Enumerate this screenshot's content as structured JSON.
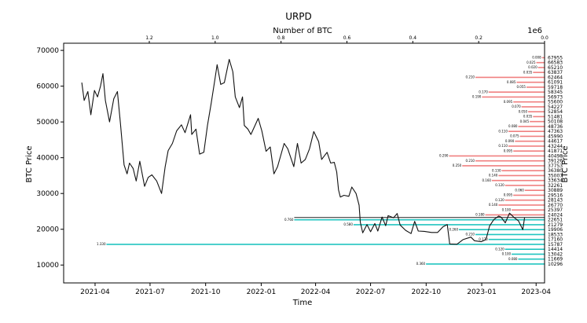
{
  "chart_data": {
    "type": "bar",
    "title": "URPD",
    "xlabel": "Time",
    "ylabel": "BTC Price",
    "ylabel_right": "BTC Price",
    "xlabel_top": "Number of BTC",
    "top_axis_multiplier": "1e6",
    "ylim": [
      5000,
      72000
    ],
    "yticks": [
      10000,
      20000,
      30000,
      40000,
      50000,
      60000,
      70000
    ],
    "xlim": [
      "2021-02-08",
      "2023-04-15"
    ],
    "xticks": [
      {
        "label": "2021-04",
        "date": "2021-04-01"
      },
      {
        "label": "2021-07",
        "date": "2021-07-01"
      },
      {
        "label": "2021-10",
        "date": "2021-10-01"
      },
      {
        "label": "2022-01",
        "date": "2022-01-01"
      },
      {
        "label": "2022-04",
        "date": "2022-04-01"
      },
      {
        "label": "2022-07",
        "date": "2022-07-01"
      },
      {
        "label": "2022-10",
        "date": "2022-10-01"
      },
      {
        "label": "2023-01",
        "date": "2023-01-01"
      },
      {
        "label": "2023-04",
        "date": "2023-04-01"
      }
    ],
    "top_xlim": [
      1.46,
      0.0
    ],
    "top_xticks": [
      1.2,
      1.0,
      0.8,
      0.6,
      0.4,
      0.2,
      0.0
    ],
    "current_price": 23300,
    "grid": false,
    "colors": {
      "price_line": "#111111",
      "supply_above": "#f08080",
      "supply_below": "#22c5c0",
      "marker_line": "#222222"
    },
    "price_series": [
      {
        "date": "2021-03-10",
        "price": 61000
      },
      {
        "date": "2021-03-14",
        "price": 56000
      },
      {
        "date": "2021-03-20",
        "price": 58500
      },
      {
        "date": "2021-03-25",
        "price": 52000
      },
      {
        "date": "2021-03-31",
        "price": 58800
      },
      {
        "date": "2021-04-05",
        "price": 57000
      },
      {
        "date": "2021-04-10",
        "price": 60000
      },
      {
        "date": "2021-04-14",
        "price": 63500
      },
      {
        "date": "2021-04-18",
        "price": 56000
      },
      {
        "date": "2021-04-25",
        "price": 50000
      },
      {
        "date": "2021-05-02",
        "price": 56500
      },
      {
        "date": "2021-05-08",
        "price": 58500
      },
      {
        "date": "2021-05-13",
        "price": 49500
      },
      {
        "date": "2021-05-19",
        "price": 38000
      },
      {
        "date": "2021-05-24",
        "price": 35500
      },
      {
        "date": "2021-05-28",
        "price": 38500
      },
      {
        "date": "2021-06-03",
        "price": 37000
      },
      {
        "date": "2021-06-08",
        "price": 33500
      },
      {
        "date": "2021-06-14",
        "price": 39000
      },
      {
        "date": "2021-06-22",
        "price": 32000
      },
      {
        "date": "2021-06-28",
        "price": 34500
      },
      {
        "date": "2021-07-04",
        "price": 35200
      },
      {
        "date": "2021-07-12",
        "price": 33500
      },
      {
        "date": "2021-07-20",
        "price": 30000
      },
      {
        "date": "2021-07-26",
        "price": 37500
      },
      {
        "date": "2021-07-31",
        "price": 42000
      },
      {
        "date": "2021-08-07",
        "price": 44000
      },
      {
        "date": "2021-08-14",
        "price": 47500
      },
      {
        "date": "2021-08-22",
        "price": 49200
      },
      {
        "date": "2021-08-28",
        "price": 47000
      },
      {
        "date": "2021-09-06",
        "price": 52000
      },
      {
        "date": "2021-09-08",
        "price": 46500
      },
      {
        "date": "2021-09-15",
        "price": 48000
      },
      {
        "date": "2021-09-21",
        "price": 41000
      },
      {
        "date": "2021-09-28",
        "price": 41500
      },
      {
        "date": "2021-10-04",
        "price": 49000
      },
      {
        "date": "2021-10-10",
        "price": 55000
      },
      {
        "date": "2021-10-16",
        "price": 61500
      },
      {
        "date": "2021-10-20",
        "price": 66000
      },
      {
        "date": "2021-10-26",
        "price": 60500
      },
      {
        "date": "2021-11-01",
        "price": 61000
      },
      {
        "date": "2021-11-09",
        "price": 67500
      },
      {
        "date": "2021-11-15",
        "price": 64000
      },
      {
        "date": "2021-11-19",
        "price": 57000
      },
      {
        "date": "2021-11-26",
        "price": 54000
      },
      {
        "date": "2021-12-01",
        "price": 57000
      },
      {
        "date": "2021-12-04",
        "price": 49000
      },
      {
        "date": "2021-12-10",
        "price": 48000
      },
      {
        "date": "2021-12-15",
        "price": 46500
      },
      {
        "date": "2021-12-27",
        "price": 51000
      },
      {
        "date": "2022-01-02",
        "price": 47500
      },
      {
        "date": "2022-01-09",
        "price": 41800
      },
      {
        "date": "2022-01-16",
        "price": 43000
      },
      {
        "date": "2022-01-22",
        "price": 35500
      },
      {
        "date": "2022-01-28",
        "price": 37500
      },
      {
        "date": "2022-02-08",
        "price": 44000
      },
      {
        "date": "2022-02-14",
        "price": 42500
      },
      {
        "date": "2022-02-24",
        "price": 37500
      },
      {
        "date": "2022-03-02",
        "price": 44000
      },
      {
        "date": "2022-03-08",
        "price": 38500
      },
      {
        "date": "2022-03-15",
        "price": 39500
      },
      {
        "date": "2022-03-22",
        "price": 42500
      },
      {
        "date": "2022-03-29",
        "price": 47300
      },
      {
        "date": "2022-04-06",
        "price": 44500
      },
      {
        "date": "2022-04-11",
        "price": 39500
      },
      {
        "date": "2022-04-20",
        "price": 41500
      },
      {
        "date": "2022-04-26",
        "price": 38500
      },
      {
        "date": "2022-05-02",
        "price": 38700
      },
      {
        "date": "2022-05-06",
        "price": 36000
      },
      {
        "date": "2022-05-09",
        "price": 31000
      },
      {
        "date": "2022-05-12",
        "price": 29000
      },
      {
        "date": "2022-05-18",
        "price": 29500
      },
      {
        "date": "2022-05-26",
        "price": 29200
      },
      {
        "date": "2022-05-31",
        "price": 31800
      },
      {
        "date": "2022-06-07",
        "price": 30000
      },
      {
        "date": "2022-06-12",
        "price": 26700
      },
      {
        "date": "2022-06-14",
        "price": 22000
      },
      {
        "date": "2022-06-18",
        "price": 19000
      },
      {
        "date": "2022-06-25",
        "price": 21300
      },
      {
        "date": "2022-07-01",
        "price": 19300
      },
      {
        "date": "2022-07-08",
        "price": 21600
      },
      {
        "date": "2022-07-13",
        "price": 19500
      },
      {
        "date": "2022-07-20",
        "price": 23400
      },
      {
        "date": "2022-07-26",
        "price": 21000
      },
      {
        "date": "2022-07-30",
        "price": 23800
      },
      {
        "date": "2022-08-08",
        "price": 23200
      },
      {
        "date": "2022-08-14",
        "price": 24400
      },
      {
        "date": "2022-08-19",
        "price": 21200
      },
      {
        "date": "2022-08-28",
        "price": 19700
      },
      {
        "date": "2022-09-06",
        "price": 18800
      },
      {
        "date": "2022-09-12",
        "price": 22200
      },
      {
        "date": "2022-09-18",
        "price": 19500
      },
      {
        "date": "2022-09-28",
        "price": 19400
      },
      {
        "date": "2022-10-10",
        "price": 19100
      },
      {
        "date": "2022-10-20",
        "price": 19100
      },
      {
        "date": "2022-10-29",
        "price": 20700
      },
      {
        "date": "2022-11-05",
        "price": 21300
      },
      {
        "date": "2022-11-09",
        "price": 15900
      },
      {
        "date": "2022-11-21",
        "price": 15800
      },
      {
        "date": "2022-12-01",
        "price": 17100
      },
      {
        "date": "2022-12-14",
        "price": 17800
      },
      {
        "date": "2022-12-20",
        "price": 16800
      },
      {
        "date": "2022-12-31",
        "price": 16500
      },
      {
        "date": "2023-01-08",
        "price": 17100
      },
      {
        "date": "2023-01-14",
        "price": 20900
      },
      {
        "date": "2023-01-21",
        "price": 22700
      },
      {
        "date": "2023-01-29",
        "price": 23700
      },
      {
        "date": "2023-02-02",
        "price": 23400
      },
      {
        "date": "2023-02-09",
        "price": 21800
      },
      {
        "date": "2023-02-16",
        "price": 24500
      },
      {
        "date": "2023-02-24",
        "price": 23200
      },
      {
        "date": "2023-03-03",
        "price": 22300
      },
      {
        "date": "2023-03-10",
        "price": 19900
      },
      {
        "date": "2023-03-13",
        "price": 23300
      }
    ],
    "supply_bars": [
      {
        "price": 67955,
        "btc": 0.008
      },
      {
        "price": 66583,
        "btc": 0.025
      },
      {
        "price": 65210,
        "btc": 0.02
      },
      {
        "price": 63837,
        "btc": 0.035
      },
      {
        "price": 62464,
        "btc": 0.21
      },
      {
        "price": 61091,
        "btc": 0.085
      },
      {
        "price": 59718,
        "btc": 0.055
      },
      {
        "price": 58345,
        "btc": 0.17
      },
      {
        "price": 56973,
        "btc": 0.19
      },
      {
        "price": 55600,
        "btc": 0.095
      },
      {
        "price": 54227,
        "btc": 0.07
      },
      {
        "price": 52854,
        "btc": 0.05
      },
      {
        "price": 51481,
        "btc": 0.035
      },
      {
        "price": 50108,
        "btc": 0.045
      },
      {
        "price": 48736,
        "btc": 0.08
      },
      {
        "price": 47363,
        "btc": 0.11
      },
      {
        "price": 45990,
        "btc": 0.075
      },
      {
        "price": 44617,
        "btc": 0.09
      },
      {
        "price": 43244,
        "btc": 0.11
      },
      {
        "price": 41871,
        "btc": 0.095
      },
      {
        "price": 40498,
        "btc": 0.29
      },
      {
        "price": 39126,
        "btc": 0.21
      },
      {
        "price": 37753,
        "btc": 0.25
      },
      {
        "price": 36380,
        "btc": 0.13
      },
      {
        "price": 35007,
        "btc": 0.14
      },
      {
        "price": 33634,
        "btc": 0.16
      },
      {
        "price": 32261,
        "btc": 0.12
      },
      {
        "price": 30889,
        "btc": 0.06
      },
      {
        "price": 29516,
        "btc": 0.095
      },
      {
        "price": 28143,
        "btc": 0.12
      },
      {
        "price": 26770,
        "btc": 0.14
      },
      {
        "price": 25397,
        "btc": 0.1
      },
      {
        "price": 24024,
        "btc": 0.18
      },
      {
        "price": 22651,
        "btc": 0.76
      },
      {
        "price": 21279,
        "btc": 0.58
      },
      {
        "price": 19906,
        "btc": 0.26
      },
      {
        "price": 18533,
        "btc": 0.21
      },
      {
        "price": 17160,
        "btc": 0.17
      },
      {
        "price": 15787,
        "btc": 1.33
      },
      {
        "price": 14414,
        "btc": 0.12
      },
      {
        "price": 13042,
        "btc": 0.1
      },
      {
        "price": 11669,
        "btc": 0.08
      },
      {
        "price": 10296,
        "btc": 0.36
      }
    ]
  }
}
